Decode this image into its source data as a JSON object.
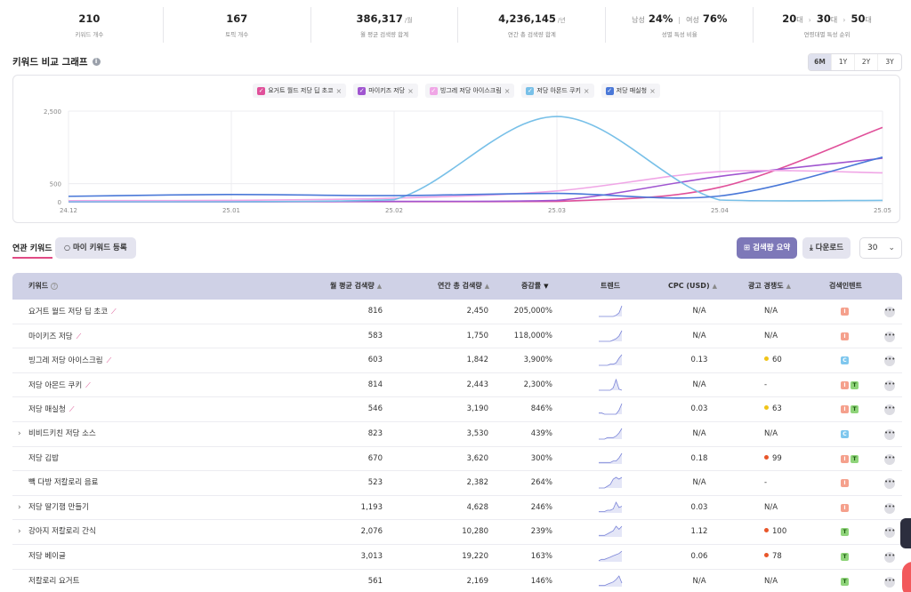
{
  "stats": [
    {
      "value": "210",
      "unit": "",
      "label": "키워드 개수"
    },
    {
      "value": "167",
      "unit": "",
      "label": "토픽 개수"
    },
    {
      "value": "386,317",
      "unit": "/월",
      "label": "월 평균 검색량 합계"
    },
    {
      "value": "4,236,145",
      "unit": "/년",
      "label": "연간 총 검색량 합계"
    }
  ],
  "gender": {
    "male_label": "남성",
    "male_value": "24%",
    "sep": "|",
    "female_label": "여성",
    "female_value": "76%",
    "label": "성별 특성 비율"
  },
  "age": {
    "first": "20",
    "second": "30",
    "third": "50",
    "suffix": "대",
    "arrow": "›",
    "label": "연령대별 특성 순위"
  },
  "graph": {
    "title": "키워드 비교 그래프",
    "ranges": [
      "6M",
      "1Y",
      "2Y",
      "3Y"
    ],
    "active_range": "6M"
  },
  "chart_data": {
    "type": "line",
    "x": [
      "24.12",
      "25.01",
      "25.02",
      "25.03",
      "25.04",
      "25.05"
    ],
    "ylim": [
      0,
      2500
    ],
    "yticks": [
      "2,500",
      "500",
      "0"
    ],
    "grid": true,
    "legend_position": "top-center",
    "series": [
      {
        "name": "요거트 월드 저당 딥 초코",
        "color": "#e0509a",
        "values": [
          0,
          0,
          5,
          10,
          400,
          2050
        ]
      },
      {
        "name": "마이키즈 저당",
        "color": "#a055d0",
        "values": [
          0,
          0,
          10,
          40,
          700,
          1200
        ]
      },
      {
        "name": "빙그레 저당 아이스크림",
        "color": "#f0a6e6",
        "values": [
          30,
          40,
          100,
          300,
          830,
          800
        ]
      },
      {
        "name": "저당 아몬드 쿠키",
        "color": "#78c0e8",
        "values": [
          0,
          0,
          60,
          2350,
          50,
          40
        ]
      },
      {
        "name": "저당 매실청",
        "color": "#4a78d8",
        "values": [
          150,
          200,
          170,
          230,
          160,
          1230
        ]
      }
    ]
  },
  "controls": {
    "tab_label": "연관 키워드",
    "my_keyword_label": "마이 키워드 등록",
    "summary_label": "검색량 요약",
    "download_label": "다운로드",
    "page_size": "30"
  },
  "table": {
    "headers": {
      "keyword": "키워드",
      "monthly": "월 평균 검색량",
      "yearly": "연간 총 검색량",
      "growth": "증감률",
      "trend": "트렌드",
      "cpc": "CPC (USD)",
      "competition": "광고 경쟁도",
      "intent": "검색인텐트"
    },
    "rows": [
      {
        "keyword": "요거트 월드 저당 딥 초코",
        "expand": false,
        "trend_icon": true,
        "monthly": "816",
        "yearly": "2,450",
        "growth": "205,000%",
        "cpc": "N/A",
        "competition": "N/A",
        "comp_color": "",
        "intents": [
          "I"
        ],
        "spark": [
          0,
          0,
          0,
          0,
          0,
          0,
          1,
          3,
          9
        ]
      },
      {
        "keyword": "마이키즈 저당",
        "expand": false,
        "trend_icon": true,
        "monthly": "583",
        "yearly": "1,750",
        "growth": "118,000%",
        "cpc": "N/A",
        "competition": "N/A",
        "comp_color": "",
        "intents": [
          "I"
        ],
        "spark": [
          0,
          0,
          0,
          0,
          0,
          1,
          2,
          4,
          8
        ]
      },
      {
        "keyword": "빙그레 저당 아이스크림",
        "expand": false,
        "trend_icon": true,
        "monthly": "603",
        "yearly": "1,842",
        "growth": "3,900%",
        "cpc": "0.13",
        "competition": "60",
        "comp_color": "#f0c419",
        "intents": [
          "C"
        ],
        "spark": [
          0,
          0,
          0,
          0,
          1,
          1,
          2,
          6,
          9
        ]
      },
      {
        "keyword": "저당 아몬드 쿠키",
        "expand": false,
        "trend_icon": true,
        "monthly": "814",
        "yearly": "2,443",
        "growth": "2,300%",
        "cpc": "N/A",
        "competition": "-",
        "comp_color": "",
        "intents": [
          "I",
          "T"
        ],
        "spark": [
          0,
          0,
          0,
          0,
          0,
          2,
          9,
          1,
          0
        ]
      },
      {
        "keyword": "저당 매실청",
        "expand": false,
        "trend_icon": true,
        "monthly": "546",
        "yearly": "3,190",
        "growth": "846%",
        "cpc": "0.03",
        "competition": "63",
        "comp_color": "#f0c419",
        "intents": [
          "I",
          "T"
        ],
        "spark": [
          1,
          1,
          0,
          0,
          0,
          0,
          0,
          3,
          8
        ]
      },
      {
        "keyword": "비비드키친 저당 소스",
        "expand": true,
        "trend_icon": false,
        "monthly": "823",
        "yearly": "3,530",
        "growth": "439%",
        "cpc": "N/A",
        "competition": "N/A",
        "comp_color": "",
        "intents": [
          "C"
        ],
        "spark": [
          0,
          0,
          0,
          1,
          1,
          1,
          2,
          4,
          7
        ]
      },
      {
        "keyword": "저당 김밥",
        "expand": false,
        "trend_icon": false,
        "monthly": "670",
        "yearly": "3,620",
        "growth": "300%",
        "cpc": "0.18",
        "competition": "99",
        "comp_color": "#e8562a",
        "intents": [
          "I",
          "T"
        ],
        "spark": [
          1,
          1,
          1,
          1,
          1,
          2,
          2,
          4,
          7
        ]
      },
      {
        "keyword": "빽 다방 저칼로리 음료",
        "expand": false,
        "trend_icon": false,
        "monthly": "523",
        "yearly": "2,382",
        "growth": "264%",
        "cpc": "N/A",
        "competition": "-",
        "comp_color": "",
        "intents": [
          "I"
        ],
        "spark": [
          0,
          0,
          0,
          1,
          2,
          5,
          6,
          5,
          6
        ]
      },
      {
        "keyword": "저당 딸기잼 만들기",
        "expand": true,
        "trend_icon": false,
        "monthly": "1,193",
        "yearly": "4,628",
        "growth": "246%",
        "cpc": "0.03",
        "competition": "N/A",
        "comp_color": "",
        "intents": [
          "I"
        ],
        "spark": [
          1,
          1,
          1,
          2,
          2,
          3,
          8,
          4,
          5
        ]
      },
      {
        "keyword": "강아지 저칼로리 간식",
        "expand": true,
        "trend_icon": false,
        "monthly": "2,076",
        "yearly": "10,280",
        "growth": "239%",
        "cpc": "1.12",
        "competition": "100",
        "comp_color": "#e8562a",
        "intents": [
          "T"
        ],
        "spark": [
          1,
          1,
          1,
          2,
          3,
          4,
          7,
          5,
          7
        ]
      },
      {
        "keyword": "저당 베이글",
        "expand": false,
        "trend_icon": false,
        "monthly": "3,013",
        "yearly": "19,220",
        "growth": "163%",
        "cpc": "0.06",
        "competition": "78",
        "comp_color": "#e8562a",
        "intents": [
          "T"
        ],
        "spark": [
          1,
          2,
          2,
          3,
          4,
          5,
          6,
          7,
          9
        ]
      },
      {
        "keyword": "저칼로리 요거트",
        "expand": false,
        "trend_icon": false,
        "monthly": "561",
        "yearly": "2,169",
        "growth": "146%",
        "cpc": "N/A",
        "competition": "N/A",
        "comp_color": "",
        "intents": [
          "T"
        ],
        "spark": [
          1,
          1,
          1,
          2,
          3,
          4,
          6,
          9,
          3
        ]
      }
    ]
  }
}
